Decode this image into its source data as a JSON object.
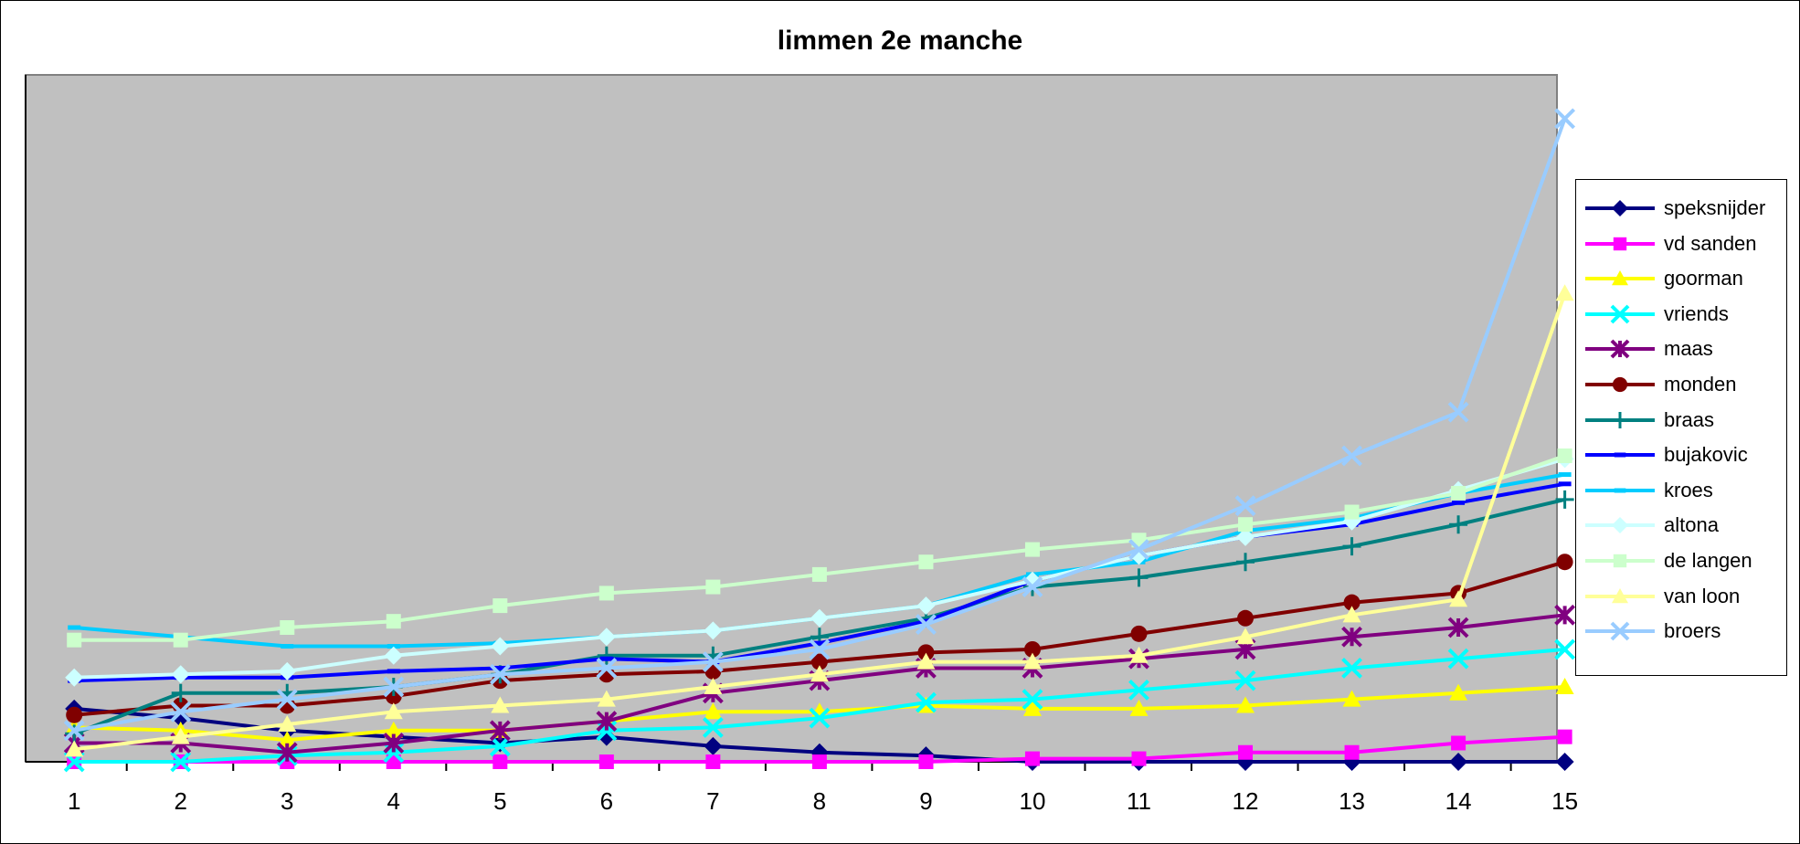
{
  "chart_data": {
    "type": "line",
    "title": "limmen 2e manche",
    "xlabel": "",
    "ylabel": "",
    "categories": [
      "1",
      "2",
      "3",
      "4",
      "5",
      "6",
      "7",
      "8",
      "9",
      "10",
      "11",
      "12",
      "13",
      "14",
      "15"
    ],
    "ylim": [
      0,
      110
    ],
    "grid": false,
    "legend_position": "right",
    "plot_background": "#c0c0c0",
    "series": [
      {
        "name": "speksnijder",
        "color": "#000080",
        "marker": "diamond",
        "values": [
          8.5,
          7,
          5,
          4,
          3,
          4,
          2.5,
          1.5,
          1,
          0,
          0,
          0,
          0,
          0,
          0
        ]
      },
      {
        "name": "vd sanden",
        "color": "#ff00ff",
        "marker": "square",
        "values": [
          0,
          0,
          0,
          0,
          0,
          0,
          0,
          0,
          0,
          0.5,
          0.5,
          1.5,
          1.5,
          3,
          4
        ]
      },
      {
        "name": "goorman",
        "color": "#ffff00",
        "marker": "triangle",
        "values": [
          5.5,
          5,
          3.5,
          5,
          5,
          6.5,
          8,
          8,
          9,
          8.5,
          8.5,
          9,
          10,
          11,
          12
        ]
      },
      {
        "name": "vriends",
        "color": "#00ffff",
        "marker": "x",
        "values": [
          0,
          0,
          1,
          1.5,
          2.5,
          5,
          5.5,
          7,
          9.5,
          10,
          11.5,
          13,
          15,
          16.5,
          18
        ]
      },
      {
        "name": "maas",
        "color": "#800080",
        "marker": "star",
        "values": [
          3,
          3,
          1.5,
          3,
          5,
          6.5,
          11,
          13,
          15,
          15,
          16.5,
          18,
          20,
          21.5,
          23.5
        ]
      },
      {
        "name": "monden",
        "color": "#800000",
        "marker": "circle",
        "values": [
          7.5,
          9,
          9,
          10.5,
          13,
          14,
          14.5,
          16,
          17.5,
          18,
          20.5,
          23,
          25.5,
          27,
          32
        ]
      },
      {
        "name": "braas",
        "color": "#008080",
        "marker": "plus",
        "values": [
          4.5,
          11,
          11,
          12,
          14,
          17,
          17,
          20,
          23,
          28,
          29.5,
          32,
          34.5,
          38,
          42
        ]
      },
      {
        "name": "bujakovic",
        "color": "#0000ff",
        "marker": "dash",
        "values": [
          13,
          13.5,
          13.5,
          14.5,
          15,
          16.5,
          16,
          19,
          22.5,
          29,
          33,
          36,
          38,
          41.5,
          44.5
        ]
      },
      {
        "name": "kroes",
        "color": "#00ccff",
        "marker": "dash",
        "values": [
          21.5,
          20,
          18.5,
          18.5,
          19,
          20,
          21,
          23,
          25,
          30,
          32,
          37,
          39,
          43,
          46
        ]
      },
      {
        "name": "altona",
        "color": "#ccffff",
        "marker": "diamond",
        "values": [
          13.5,
          14,
          14.5,
          17,
          18.5,
          20,
          21,
          23,
          25,
          29,
          33,
          36,
          38.5,
          43.5,
          48.5
        ]
      },
      {
        "name": "de langen",
        "color": "#ccffcc",
        "marker": "square",
        "values": [
          19.5,
          19.5,
          21.5,
          22.5,
          25,
          27,
          28,
          30,
          32,
          34,
          35.5,
          38,
          40,
          43,
          49
        ]
      },
      {
        "name": "van loon",
        "color": "#ffff99",
        "marker": "triangle",
        "values": [
          2,
          4,
          6,
          8,
          9,
          10,
          12,
          14,
          16,
          16,
          17,
          20,
          23.5,
          26,
          75
        ]
      },
      {
        "name": "broers",
        "color": "#99ccff",
        "marker": "x",
        "values": [
          5,
          8,
          10,
          12,
          14,
          15,
          16,
          18,
          22,
          28,
          34,
          41,
          49,
          56,
          103
        ]
      }
    ]
  }
}
